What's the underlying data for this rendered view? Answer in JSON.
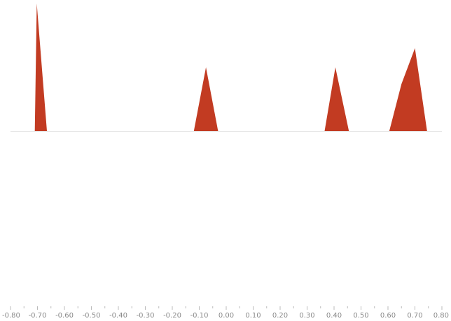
{
  "chart_data": {
    "type": "area",
    "title": "",
    "xlabel": "",
    "ylabel": "",
    "xlim": [
      -0.8,
      0.8
    ],
    "x_ticks": [
      "-0.80",
      "-0.70",
      "-0.60",
      "-0.50",
      "-0.40",
      "-0.30",
      "-0.20",
      "-0.10",
      "0.00",
      "0.10",
      "0.20",
      "0.30",
      "0.40",
      "0.50",
      "0.60",
      "0.70",
      "0.80"
    ],
    "grid": false,
    "legend": "none",
    "colors": {
      "fill": "#c23b22",
      "baseline": "#e6e6e6",
      "tick": "#bbbbbb",
      "label": "#8a8a8a"
    },
    "series": [
      {
        "x": [
          -0.71,
          -0.7025,
          -0.665
        ],
        "y": [
          0,
          1.0,
          0
        ]
      },
      {
        "x": [
          -0.12,
          -0.075,
          -0.03
        ],
        "y": [
          0,
          0.5,
          0
        ]
      },
      {
        "x": [
          0.365,
          0.405,
          0.455
        ],
        "y": [
          0,
          0.5,
          0
        ]
      },
      {
        "x": [
          0.605,
          0.65,
          0.7,
          0.745
        ],
        "y": [
          0,
          0.37,
          0.65,
          0
        ]
      }
    ]
  }
}
